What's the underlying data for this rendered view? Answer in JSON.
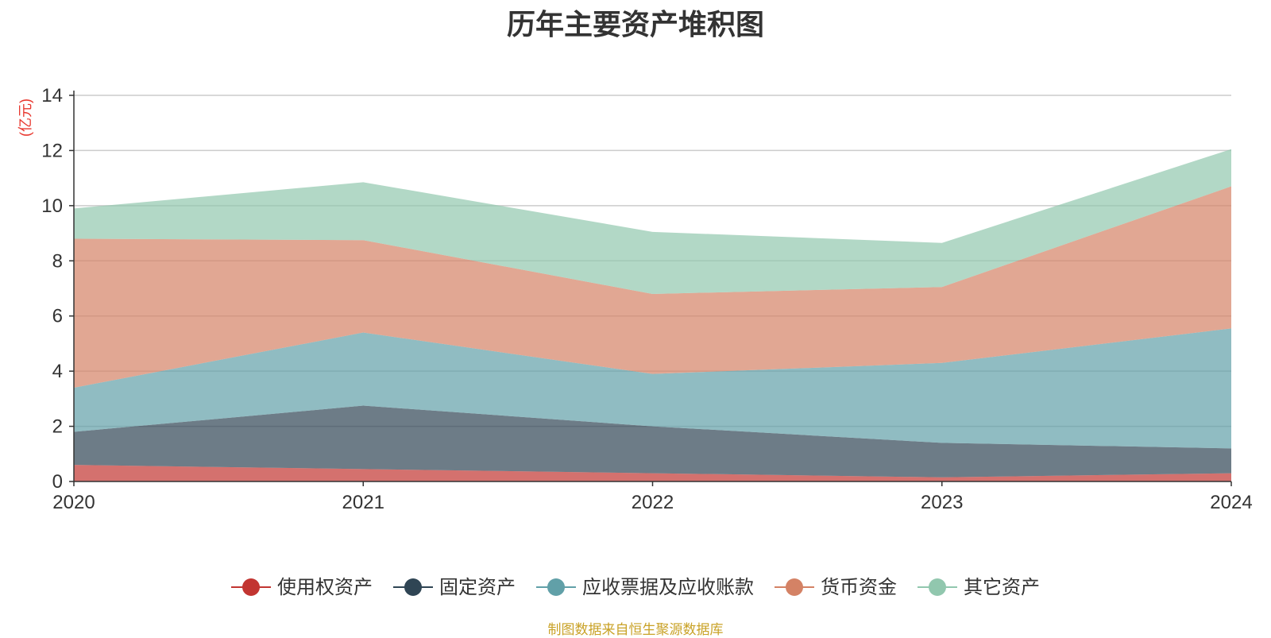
{
  "chart_data": {
    "type": "area",
    "title": "历年主要资产堆积图",
    "unit_label": "(亿元)",
    "x": [
      "2020",
      "2021",
      "2022",
      "2023",
      "2024"
    ],
    "ylim": [
      0,
      14
    ],
    "yticks": [
      "0",
      "2",
      "4",
      "6",
      "8",
      "10",
      "12",
      "14"
    ],
    "grid": true,
    "stacked": true,
    "legend_position": "bottom",
    "series": [
      {
        "name": "使用权资产",
        "values": [
          0.6,
          0.45,
          0.3,
          0.15,
          0.3
        ],
        "color": "#c23531"
      },
      {
        "name": "固定资产",
        "values": [
          1.2,
          2.3,
          1.7,
          1.25,
          0.9
        ],
        "color": "#2f4554"
      },
      {
        "name": "应收票据及应收账款",
        "values": [
          1.6,
          2.65,
          1.9,
          2.9,
          4.35
        ],
        "color": "#61a0a8"
      },
      {
        "name": "货币资金",
        "values": [
          5.4,
          3.35,
          2.9,
          2.75,
          5.15
        ],
        "color": "#d48265"
      },
      {
        "name": "其它资产",
        "values": [
          1.1,
          2.1,
          2.25,
          1.6,
          1.35
        ],
        "color": "#91c7ae"
      }
    ]
  },
  "footer": {
    "source": "制图数据来自恒生聚源数据库"
  }
}
